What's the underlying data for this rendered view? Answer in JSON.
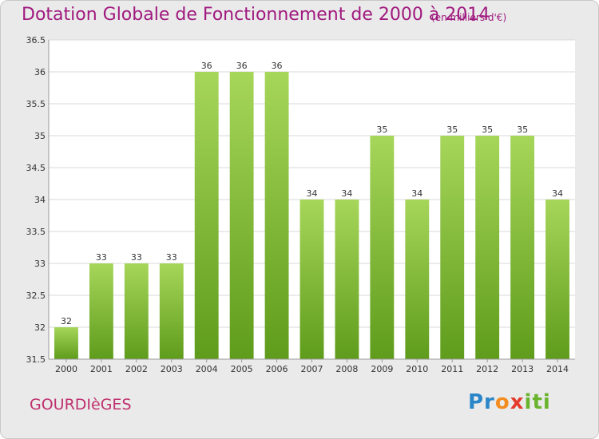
{
  "header": {
    "title": "Dotation Globale de Fonctionnement de 2000 à 2014",
    "subtitle": "(en milliers d'€)"
  },
  "footer": {
    "commune": "GOURDIèGES",
    "logo_parts": [
      "Pr",
      "o",
      "x",
      "iti"
    ]
  },
  "colors": {
    "title": "#a0197e",
    "bar_top": "#a6d65a",
    "bar_bottom": "#5f9c1c",
    "plot_bg": "#ffffff"
  },
  "chart_data": {
    "type": "bar",
    "title": "Dotation Globale de Fonctionnement de 2000 à 2014",
    "xlabel": "",
    "ylabel": "",
    "ylim": [
      31.5,
      36.5
    ],
    "yticks": [
      31.5,
      32,
      32.5,
      33,
      33.5,
      34,
      34.5,
      35,
      35.5,
      36,
      36.5
    ],
    "ytick_labels": [
      "31.5",
      "32",
      "32.5",
      "33",
      "33.5",
      "34",
      "34.5",
      "35",
      "35.5",
      "36",
      "36.5"
    ],
    "grid": true,
    "categories": [
      "2000",
      "2001",
      "2002",
      "2003",
      "2004",
      "2005",
      "2006",
      "2007",
      "2008",
      "2009",
      "2010",
      "2011",
      "2012",
      "2013",
      "2014"
    ],
    "values": [
      32,
      33,
      33,
      33,
      36,
      36,
      36,
      34,
      34,
      35,
      34,
      35,
      35,
      35,
      34
    ]
  }
}
